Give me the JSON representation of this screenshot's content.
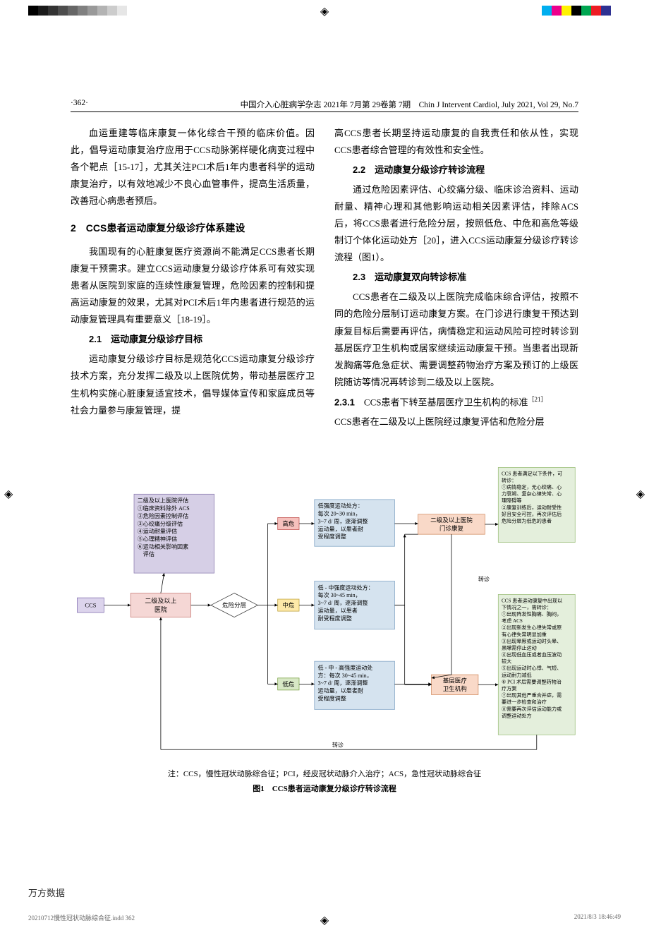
{
  "print": {
    "left_bar_colors": [
      "#000000",
      "#1a1a1a",
      "#333333",
      "#4d4d4d",
      "#666666",
      "#808080",
      "#999999",
      "#b3b3b3",
      "#cccccc",
      "#e6e6e6",
      "#ffffff"
    ],
    "right_bar_colors": [
      "#00aeef",
      "#ec008c",
      "#fff200",
      "#000000",
      "#00a651",
      "#ed1c24",
      "#2e3192",
      "#ffffff"
    ]
  },
  "header": {
    "page_label": "·362·",
    "journal": "中国介入心脏病学杂志 2021年 7月第 29卷第 7期　Chin J Intervent Cardiol, July 2021, Vol 29, No.7"
  },
  "left_col": {
    "p1": "血运重建等临床康复一体化综合干预的临床价值。因此，倡导运动康复治疗应用于CCS动脉粥样硬化病变过程中各个靶点［15-17］，尤其关注PCI术后1年内患者科学的运动康复治疗，以有效地减少不良心血管事件，提高生活质量，改善冠心病患者预后。",
    "h2": "2　CCS患者运动康复分级诊疗体系建设",
    "p2": "我国现有的心脏康复医疗资源尚不能满足CCS患者长期康复干预需求。建立CCS运动康复分级诊疗体系可有效实现患者从医院到家庭的连续性康复管理，危险因素的控制和提高运动康复的效果，尤其对PCI术后1年内患者进行规范的运动康复管理具有重要意义［18-19］。",
    "h3a": "2.1　运动康复分级诊疗目标",
    "p3": "运动康复分级诊疗目标是规范化CCS运动康复分级诊疗技术方案，充分发挥二级及以上医院优势，带动基层医疗卫生机构实施心脏康复适宜技术，倡导媒体宣传和家庭成员等社会力量参与康复管理，提"
  },
  "right_col": {
    "p1": "高CCS患者长期坚持运动康复的自我责任和依从性，实现CCS患者综合管理的有效性和安全性。",
    "h3b": "2.2　运动康复分级诊疗转诊流程",
    "p2": "通过危险因素评估、心绞痛分级、临床诊治资料、运动耐量、精神心理和其他影响运动相关因素评估，排除ACS后，将CCS患者进行危险分层，按照低危、中危和高危等级制订个体化运动处方［20］，进入CCS运动康复分级诊疗转诊流程（图1）。",
    "h3c": "2.3　运动康复双向转诊标准",
    "p3": "CCS患者在二级及以上医院完成临床综合评估，按照不同的危险分层制订运动康复方案。在门诊进行康复干预达到康复目标后需要再评估，病情稳定和运动风险可控时转诊到基层医疗卫生机构或居家继续运动康复干预。当患者出现新发胸痛等危急症状、需要调整药物治疗方案及预订的上级医院随访等情况再转诊到二级及以上医院。",
    "h3d_label": "2.3.1　",
    "h3d_title": "CCS患者下转至基层医疗卫生机构的标准",
    "h3d_ref": "［21］",
    "p4": "CCS患者在二级及以上医院经过康复评估和危险分层"
  },
  "figure": {
    "note": "注：CCS，慢性冠状动脉综合征；PCI，经皮冠状动脉介入治疗；ACS，急性冠状动脉综合征",
    "caption": "图1　CCS患者运动康复分级诊疗转诊流程",
    "colors": {
      "ccs_fill": "#dcd4ec",
      "ccs_stroke": "#7e6bad",
      "hosp_fill": "#f5d7d5",
      "hosp_stroke": "#c77b76",
      "assess_fill": "#d6cfe6",
      "assess_stroke": "#8b7db0",
      "risk_red_fill": "#f6c1bd",
      "risk_red_stroke": "#c0504d",
      "risk_yel_fill": "#fde9a9",
      "risk_yel_stroke": "#bfa33a",
      "risk_grn_fill": "#d8e8c6",
      "risk_grn_stroke": "#7aa244",
      "rx_fill": "#d5e3ef",
      "rx_stroke": "#7fa3c4",
      "outpt_fill": "#f9d9c8",
      "outpt_stroke": "#d28b5f",
      "base_fill": "#f9d9c8",
      "base_stroke": "#d28b5f",
      "refer_fill": "#e4efdc",
      "refer_stroke": "#9cbf7a",
      "line": "#000000",
      "diamond_stroke": "#333333"
    },
    "labels": {
      "ccs": "CCS",
      "hospital": "二级及以上\n医院",
      "assess": "二级及以上医院评估\n①临床资料除外 ACS\n②危险因素控制评估\n③心绞痛分级评估\n④运动耐量评估\n⑤心理精神评估\n⑥运动相关影响因素\n　评估",
      "risk_diamond": "危险分层",
      "high": "高危",
      "mid": "中危",
      "low": "低危",
      "rx_high": "低强度运动处方：\n每次 20~30 min，\n3~7 d/ 周，逐渐调整\n运动量，以患者耐\n受程度调整",
      "rx_mid": "低 - 中强度运动处方：\n每次 30~45 min，\n3~7 d/ 周，逐渐调整\n运动量，以患者\n耐受程度调整",
      "rx_low": "低 - 中 - 高强度运动处\n方：每次 30~45 min，\n3~7 d/ 周，逐渐调整\n运动量，以患者耐\n受程度调整",
      "outpatient": "二级及以上医院\n门诊康复",
      "base": "基层医疗\n卫生机构",
      "refer_label": "转诊",
      "refer_up": "CCS 患者满足以下条件，可\n转诊：\n①病情稳定，无心绞痛、心\n力衰竭、复杂心律失常、心\n理障碍等\n②康复训练后，运动耐受性\n好且安全可控，再次评估后\n危险分层为低危的患者",
      "refer_back": "CCS 患者运动康复中出现以\n下情况之一，需转诊：\n①出现阵发性胸痛、胸闷，\n考虑 ACS\n②出现新发生心律失常或原\n有心律失常明显加重\n③出现晕厥或运动时头晕、\n黑矇需停止运动\n④出现低血压或者血压波动\n较大\n⑤出现运动时心悸、气短、\n运动耐力减低\n⑥ PCI 术后需要调整药物治\n疗方案\n⑦出现其他严重合并症，需\n要进一步检查和治疗\n⑧需要再次评估运动能力或\n调整运动处方",
      "bottom_refer": "转诊"
    }
  },
  "footer": {
    "wanfang": "万方数据",
    "job": "20210712慢性冠状动脉综合征.indd   362",
    "timestamp": "2021/8/3   18:46:49"
  }
}
